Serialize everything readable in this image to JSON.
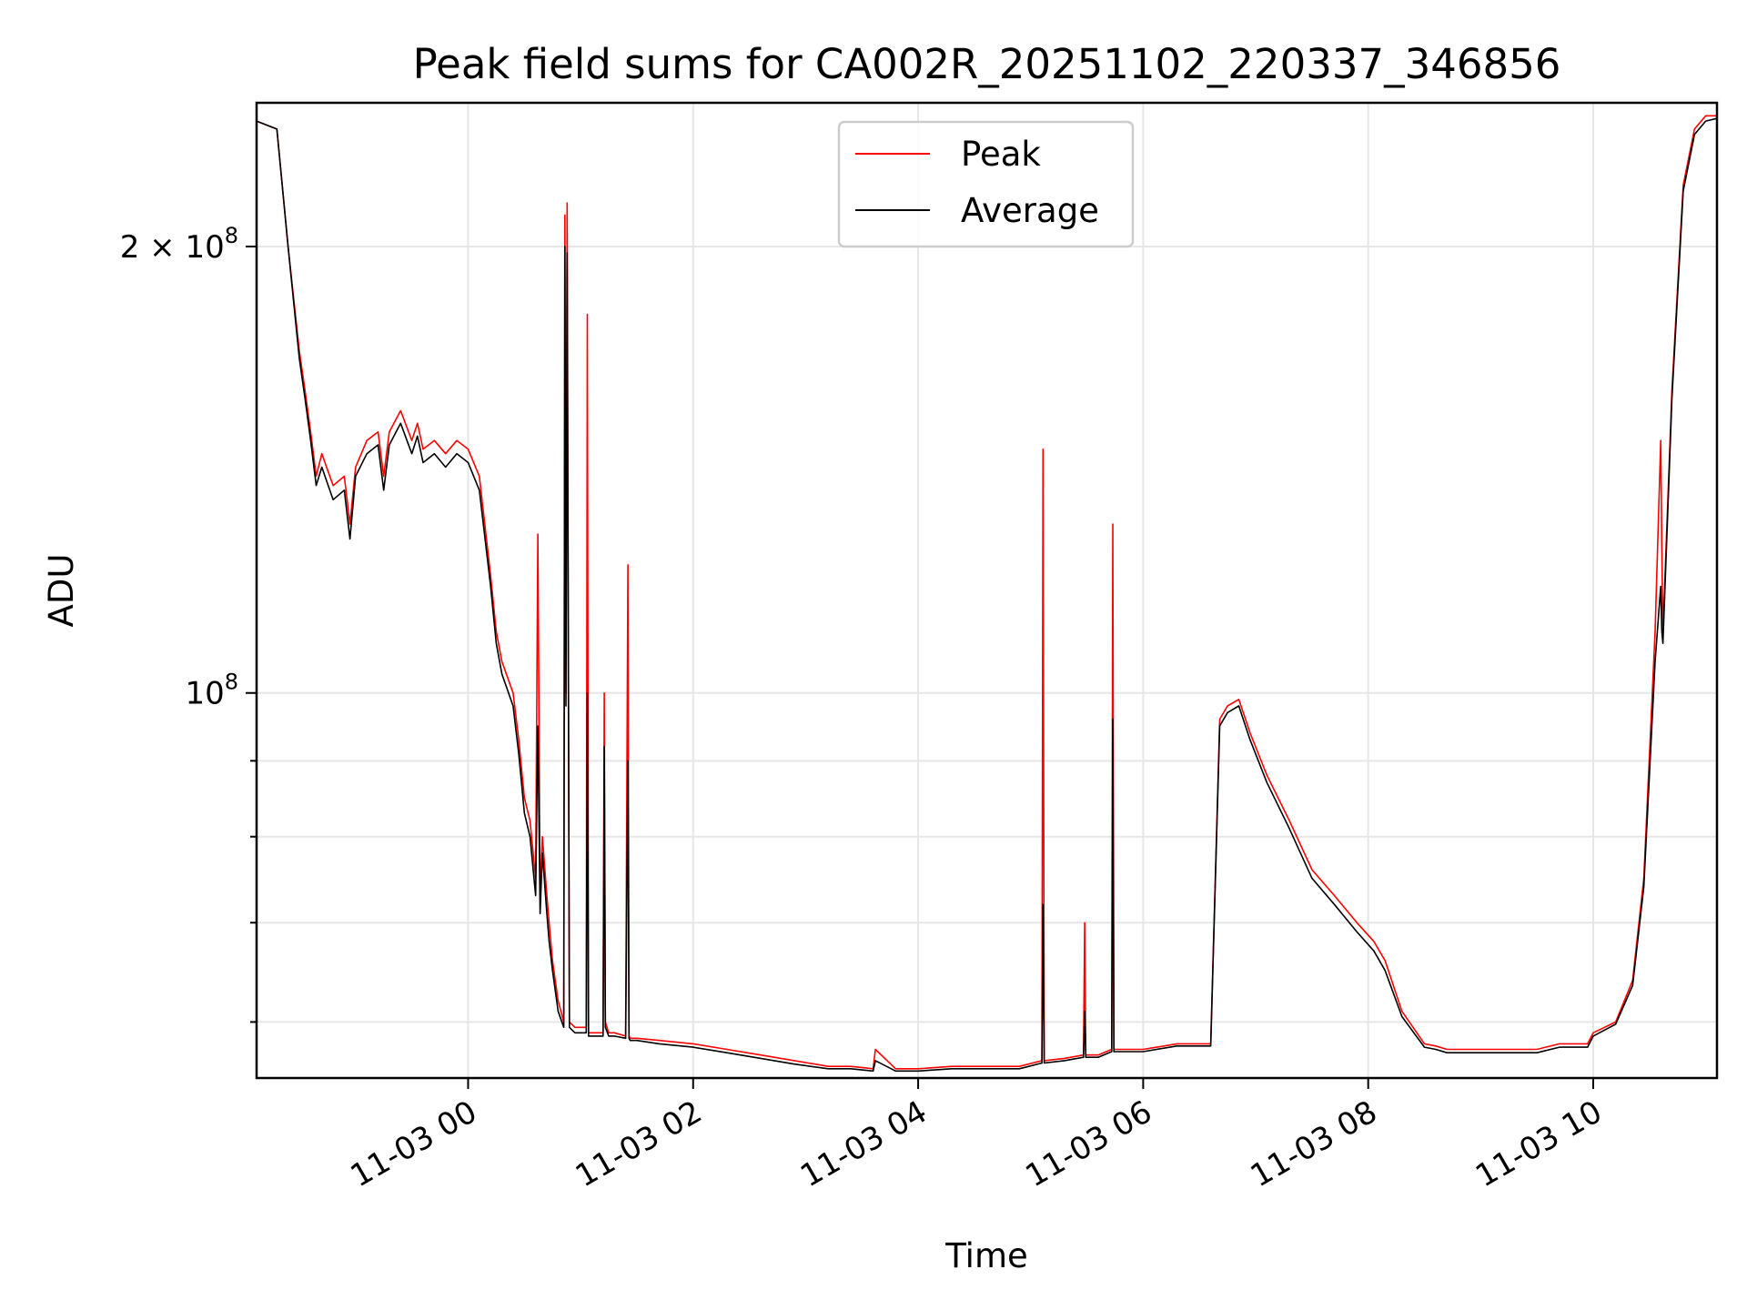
{
  "chart_data": {
    "type": "line",
    "title": "Peak field sums for CA002R_20251102_220337_346856",
    "xlabel": "Time",
    "ylabel": "ADU",
    "x_unit": "hours relative to 2025-11-03 00:00",
    "xlim": [
      -1.88,
      11.1
    ],
    "ylim": [
      55000000,
      250000000
    ],
    "yscale": "log",
    "grid": true,
    "legend_position": "upper center",
    "x_ticks": [
      {
        "value": 0,
        "label": "11-03 00"
      },
      {
        "value": 2,
        "label": "11-03 02"
      },
      {
        "value": 4,
        "label": "11-03 04"
      },
      {
        "value": 6,
        "label": "11-03 06"
      },
      {
        "value": 8,
        "label": "11-03 08"
      },
      {
        "value": 10,
        "label": "11-03 10"
      }
    ],
    "y_ticks": [
      {
        "value": 100000000,
        "label_base": "10",
        "label_exp": "8",
        "label_prefix": ""
      },
      {
        "value": 200000000,
        "label_base": "10",
        "label_exp": "8",
        "label_prefix": "2 × "
      }
    ],
    "y_minor_ticks": [
      60000000,
      70000000,
      80000000,
      90000000
    ],
    "series": [
      {
        "name": "Peak",
        "color": "#ff0000",
        "x": [
          -1.88,
          -1.7,
          -1.6,
          -1.5,
          -1.45,
          -1.4,
          -1.35,
          -1.3,
          -1.2,
          -1.1,
          -1.05,
          -1.0,
          -0.9,
          -0.8,
          -0.75,
          -0.7,
          -0.6,
          -0.5,
          -0.45,
          -0.4,
          -0.3,
          -0.2,
          -0.1,
          0.0,
          0.1,
          0.2,
          0.25,
          0.3,
          0.4,
          0.45,
          0.5,
          0.55,
          0.6,
          0.62,
          0.64,
          0.66,
          0.7,
          0.72,
          0.75,
          0.8,
          0.85,
          0.86,
          0.87,
          0.88,
          0.9,
          0.95,
          1.0,
          1.05,
          1.06,
          1.07,
          1.1,
          1.2,
          1.21,
          1.22,
          1.25,
          1.3,
          1.4,
          1.42,
          1.43,
          1.44,
          1.5,
          1.7,
          2.0,
          2.3,
          2.6,
          2.9,
          3.2,
          3.4,
          3.6,
          3.62,
          3.8,
          4.0,
          4.3,
          4.6,
          4.9,
          5.1,
          5.11,
          5.12,
          5.3,
          5.47,
          5.48,
          5.49,
          5.6,
          5.72,
          5.73,
          5.74,
          6.0,
          6.3,
          6.6,
          6.68,
          6.75,
          6.85,
          6.95,
          7.1,
          7.3,
          7.5,
          7.7,
          7.9,
          8.05,
          8.15,
          8.3,
          8.5,
          8.6,
          8.7,
          8.9,
          9.1,
          9.3,
          9.5,
          9.7,
          9.95,
          10.0,
          10.2,
          10.35,
          10.45,
          10.55,
          10.6,
          10.61,
          10.62,
          10.7,
          10.8,
          10.9,
          11.0,
          11.1
        ],
        "y": [
          243000000,
          240000000,
          200000000,
          170000000,
          160000000,
          150000000,
          140000000,
          145000000,
          138000000,
          140000000,
          130000000,
          142000000,
          148000000,
          150000000,
          140000000,
          150000000,
          155000000,
          148000000,
          152000000,
          146000000,
          148000000,
          145000000,
          148000000,
          146000000,
          140000000,
          120000000,
          110000000,
          105000000,
          100000000,
          93000000,
          85000000,
          82000000,
          75000000,
          128000000,
          73000000,
          80000000,
          73000000,
          70000000,
          66000000,
          62000000,
          60000000,
          210000000,
          100000000,
          214000000,
          60000000,
          59500000,
          59500000,
          59500000,
          180000000,
          59000000,
          59000000,
          59000000,
          100000000,
          60000000,
          59000000,
          59000000,
          58700000,
          122000000,
          58700000,
          58500000,
          58500000,
          58300000,
          58000000,
          57500000,
          57000000,
          56500000,
          56000000,
          56000000,
          55800000,
          57500000,
          55800000,
          55800000,
          56000000,
          56000000,
          56000000,
          56500000,
          146000000,
          56500000,
          56700000,
          57000000,
          70000000,
          57000000,
          57000000,
          57500000,
          130000000,
          57500000,
          57500000,
          58000000,
          58000000,
          96000000,
          98000000,
          99000000,
          94000000,
          88000000,
          82000000,
          76000000,
          73000000,
          70000000,
          68000000,
          66000000,
          61000000,
          58000000,
          57800000,
          57500000,
          57500000,
          57500000,
          57500000,
          57500000,
          58000000,
          58000000,
          59000000,
          60000000,
          64000000,
          75000000,
          110000000,
          148000000,
          125000000,
          110000000,
          160000000,
          220000000,
          240000000,
          245000000,
          245000000
        ]
      },
      {
        "name": "Average",
        "color": "#000000",
        "x": [
          -1.88,
          -1.7,
          -1.6,
          -1.5,
          -1.45,
          -1.4,
          -1.35,
          -1.3,
          -1.2,
          -1.1,
          -1.05,
          -1.0,
          -0.9,
          -0.8,
          -0.75,
          -0.7,
          -0.6,
          -0.5,
          -0.45,
          -0.4,
          -0.3,
          -0.2,
          -0.1,
          0.0,
          0.1,
          0.2,
          0.25,
          0.3,
          0.4,
          0.45,
          0.5,
          0.55,
          0.6,
          0.62,
          0.64,
          0.66,
          0.7,
          0.72,
          0.75,
          0.8,
          0.85,
          0.86,
          0.87,
          0.88,
          0.9,
          0.95,
          1.0,
          1.05,
          1.06,
          1.07,
          1.1,
          1.2,
          1.21,
          1.22,
          1.25,
          1.3,
          1.4,
          1.42,
          1.43,
          1.44,
          1.5,
          1.7,
          2.0,
          2.3,
          2.6,
          2.9,
          3.2,
          3.4,
          3.6,
          3.62,
          3.8,
          4.0,
          4.3,
          4.6,
          4.9,
          5.1,
          5.11,
          5.12,
          5.3,
          5.47,
          5.48,
          5.49,
          5.6,
          5.72,
          5.73,
          5.74,
          6.0,
          6.3,
          6.6,
          6.68,
          6.75,
          6.85,
          6.95,
          7.1,
          7.3,
          7.5,
          7.7,
          7.9,
          8.05,
          8.15,
          8.3,
          8.5,
          8.6,
          8.7,
          8.9,
          9.1,
          9.3,
          9.5,
          9.7,
          9.95,
          10.0,
          10.2,
          10.35,
          10.45,
          10.55,
          10.6,
          10.61,
          10.62,
          10.7,
          10.8,
          10.9,
          11.0,
          11.1
        ],
        "y": [
          243000000,
          240000000,
          200000000,
          168000000,
          158000000,
          148000000,
          138000000,
          142000000,
          135000000,
          137000000,
          127000000,
          140000000,
          145000000,
          147000000,
          137000000,
          147000000,
          152000000,
          145000000,
          149000000,
          143000000,
          145000000,
          142000000,
          145000000,
          143000000,
          137000000,
          118000000,
          108000000,
          103000000,
          98000000,
          91000000,
          83000000,
          80000000,
          73000000,
          95000000,
          71000000,
          78000000,
          71000000,
          68000000,
          65000000,
          61000000,
          59500000,
          200000000,
          98000000,
          198000000,
          59500000,
          59000000,
          59000000,
          59000000,
          100000000,
          58700000,
          58700000,
          58700000,
          92000000,
          59500000,
          58700000,
          58700000,
          58500000,
          90000000,
          58500000,
          58300000,
          58300000,
          58000000,
          57700000,
          57200000,
          56700000,
          56200000,
          55800000,
          55800000,
          55600000,
          56500000,
          55600000,
          55600000,
          55800000,
          55800000,
          55800000,
          56300000,
          72000000,
          56300000,
          56500000,
          56800000,
          61000000,
          56800000,
          56800000,
          57300000,
          96000000,
          57300000,
          57300000,
          57800000,
          57800000,
          95000000,
          97000000,
          98000000,
          93000000,
          87000000,
          81000000,
          75000000,
          72000000,
          69000000,
          67000000,
          65000000,
          60500000,
          57700000,
          57500000,
          57200000,
          57200000,
          57200000,
          57200000,
          57200000,
          57700000,
          57700000,
          58700000,
          59800000,
          63500000,
          74000000,
          105000000,
          118000000,
          110000000,
          108000000,
          158000000,
          218000000,
          238000000,
          243000000,
          244000000
        ]
      }
    ]
  }
}
